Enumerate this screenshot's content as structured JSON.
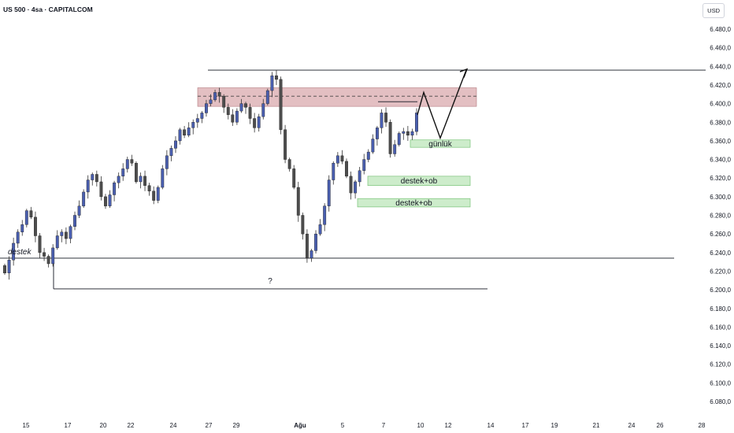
{
  "header": {
    "title": "US 500 · 4sa · CAPITALCOM",
    "currency": "USD"
  },
  "colors": {
    "bull": "#4a5fb0",
    "bear": "#4d4d4d",
    "resistance_zone": "#d9a9ad",
    "support_zone": "#cdeccb",
    "support_zone_border": "#7bc47a",
    "line": "#131722",
    "question": "#c0392b"
  },
  "chart_data": {
    "type": "candlestick",
    "title": "US 500 · 4sa · CAPITALCOM",
    "ylabel": "USD",
    "ylim": [
      6070,
      6500
    ],
    "y_ticks": [
      "6.480,0",
      "6.460,0",
      "6.440,0",
      "6.420,0",
      "6.400,0",
      "6.380,0",
      "6.360,0",
      "6.340,0",
      "6.320,0",
      "6.300,0",
      "6.280,0",
      "6.260,0",
      "6.240,0",
      "6.220,0",
      "6.200,0",
      "6.180,0",
      "6.160,0",
      "6.140,0",
      "6.120,0",
      "6.100,0",
      "6.080,0"
    ],
    "y_tick_values": [
      6480,
      6460,
      6440,
      6420,
      6400,
      6380,
      6360,
      6340,
      6320,
      6300,
      6280,
      6260,
      6240,
      6220,
      6200,
      6180,
      6160,
      6140,
      6120,
      6100,
      6080
    ],
    "x_ticks": [
      "15",
      "17",
      "20",
      "22",
      "24",
      "27",
      "29",
      "Ağu",
      "5",
      "7",
      "10",
      "12",
      "14",
      "17",
      "19",
      "21",
      "24",
      "26",
      "28"
    ],
    "candles": [
      6218,
      6232,
      6250,
      6262,
      6270,
      6285,
      6278,
      6258,
      6240,
      6236,
      6228,
      6245,
      6258,
      6262,
      6255,
      6268,
      6280,
      6290,
      6305,
      6318,
      6324,
      6316,
      6300,
      6290,
      6302,
      6315,
      6322,
      6330,
      6340,
      6336,
      6316,
      6322,
      6312,
      6306,
      6296,
      6310,
      6330,
      6344,
      6352,
      6360,
      6372,
      6366,
      6374,
      6380,
      6384,
      6390,
      6400,
      6404,
      6412,
      6408,
      6396,
      6388,
      6380,
      6392,
      6400,
      6396,
      6384,
      6374,
      6386,
      6400,
      6414,
      6430,
      6426,
      6372,
      6340,
      6330,
      6310,
      6280,
      6260,
      6234,
      6242,
      6260,
      6270,
      6290,
      6318,
      6336,
      6344,
      6338,
      6322,
      6304,
      6316,
      6328,
      6340,
      6348,
      6362,
      6374,
      6390,
      6380,
      6346,
      6356,
      6368,
      6370,
      6366,
      6370,
      6390
    ],
    "open_first": 6226,
    "annotations": {
      "resistance_zone": {
        "from": 6397,
        "to": 6417
      },
      "dashed_level": 6408,
      "top_line": 6436,
      "support_line": 6234,
      "low_line": 6201,
      "local_high_line": 6402,
      "zones": [
        {
          "label": "günlük",
          "from": 6353,
          "to": 6361
        },
        {
          "label": "destek+ob",
          "from": 6312,
          "to": 6322
        },
        {
          "label": "destek+ob",
          "from": 6289,
          "to": 6298
        }
      ],
      "destek_label": "destek",
      "question_mark": "?"
    }
  }
}
